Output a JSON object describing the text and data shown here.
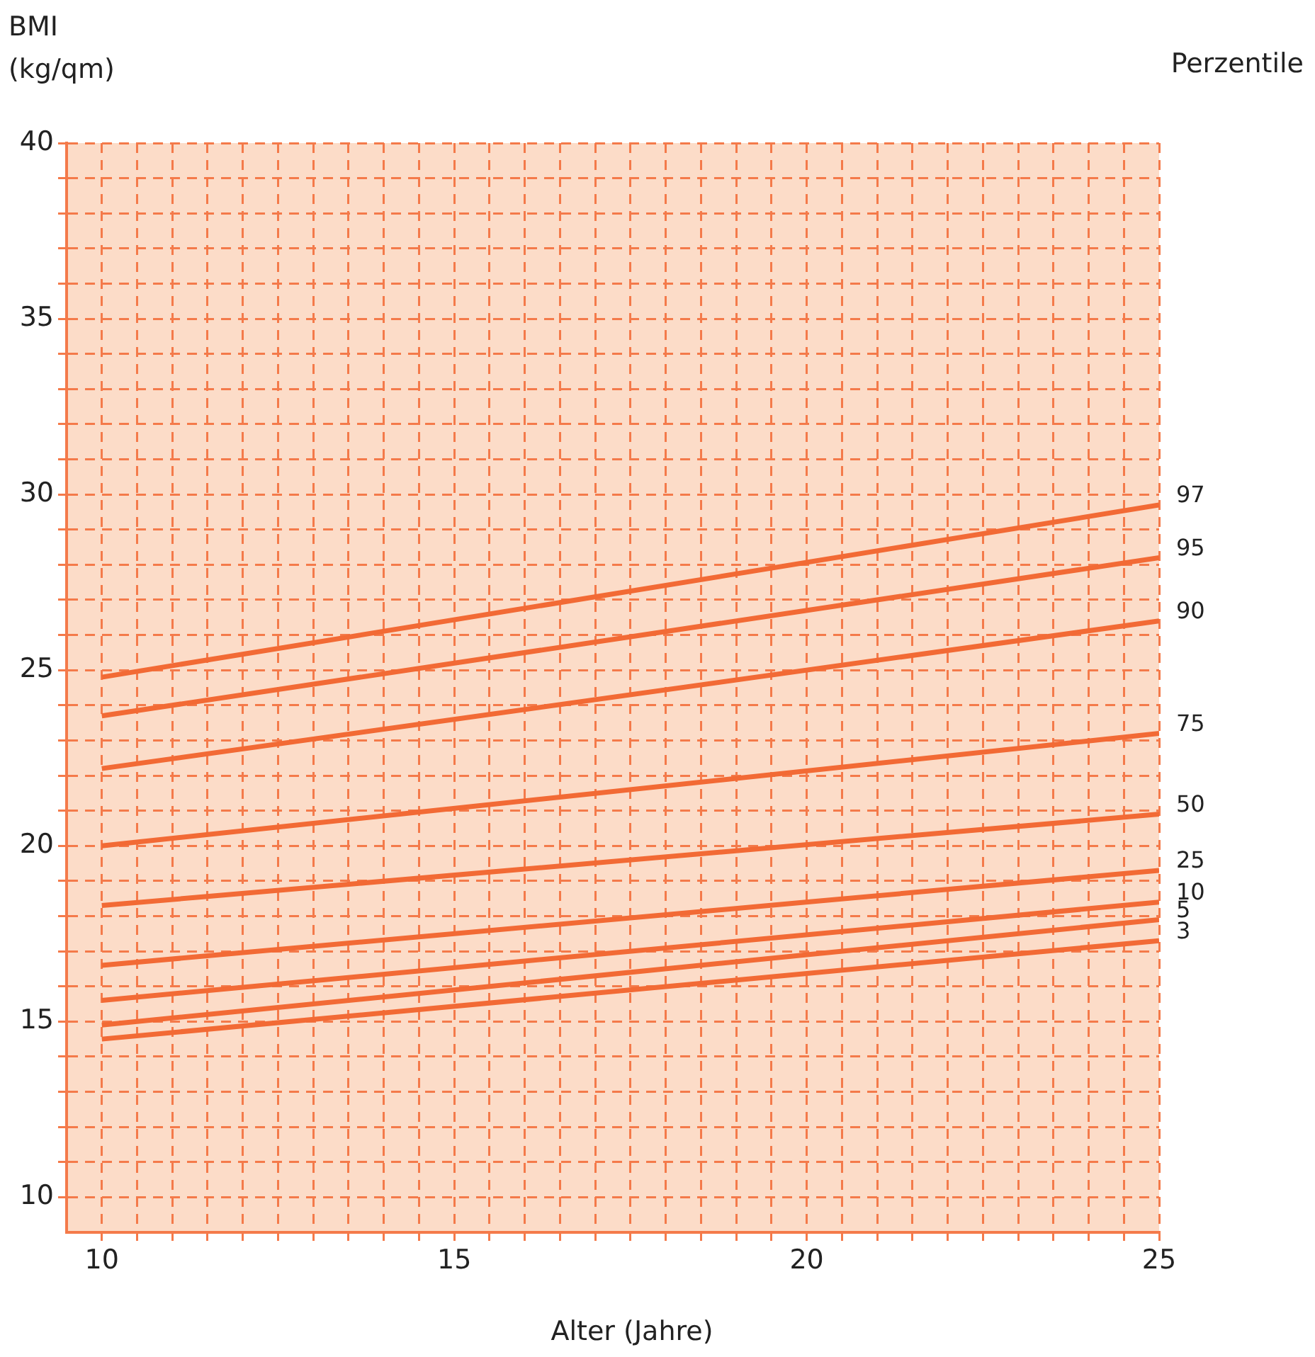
{
  "chart_data": {
    "type": "line",
    "ylabel": "BMI (kg/qm)",
    "xlabel": "Alter (Jahre)",
    "legend_title": "Perzentile",
    "x": [
      10,
      25
    ],
    "xlim": [
      9.5,
      25
    ],
    "ylim": [
      9,
      40
    ],
    "xticks": [
      10,
      {
        "value": 10.5,
        "label": null
      },
      {
        "value": 11,
        "label": null
      },
      {
        "value": 11.5,
        "label": null
      },
      {
        "value": 12,
        "label": null
      },
      {
        "value": 12.5,
        "label": null
      },
      {
        "value": 13,
        "label": null
      },
      {
        "value": 13.5,
        "label": null
      },
      {
        "value": 14,
        "label": null
      },
      {
        "value": 14.5,
        "label": null
      },
      15,
      {
        "value": 15.5,
        "label": null
      },
      {
        "value": 16,
        "label": null
      },
      {
        "value": 16.5,
        "label": null
      },
      {
        "value": 17,
        "label": null
      },
      {
        "value": 17.5,
        "label": null
      },
      {
        "value": 18,
        "label": null
      },
      {
        "value": 18.5,
        "label": null
      },
      {
        "value": 19,
        "label": null
      },
      {
        "value": 19.5,
        "label": null
      },
      20,
      {
        "value": 20.5,
        "label": null
      },
      {
        "value": 21,
        "label": null
      },
      {
        "value": 21.5,
        "label": null
      },
      {
        "value": 22,
        "label": null
      },
      {
        "value": 22.5,
        "label": null
      },
      {
        "value": 23,
        "label": null
      },
      {
        "value": 23.5,
        "label": null
      },
      {
        "value": 24,
        "label": null
      },
      {
        "value": 24.5,
        "label": null
      },
      25
    ],
    "yticks": [
      10,
      {
        "value": 11,
        "label": null
      },
      {
        "value": 12,
        "label": null
      },
      {
        "value": 13,
        "label": null
      },
      {
        "value": 14,
        "label": null
      },
      15,
      {
        "value": 16,
        "label": null
      },
      {
        "value": 17,
        "label": null
      },
      {
        "value": 18,
        "label": null
      },
      {
        "value": 19,
        "label": null
      },
      20,
      {
        "value": 21,
        "label": null
      },
      {
        "value": 22,
        "label": null
      },
      {
        "value": 23,
        "label": null
      },
      {
        "value": 24,
        "label": null
      },
      25,
      {
        "value": 26,
        "label": null
      },
      {
        "value": 27,
        "label": null
      },
      {
        "value": 28,
        "label": null
      },
      {
        "value": 29,
        "label": null
      },
      30,
      {
        "value": 31,
        "label": null
      },
      {
        "value": 32,
        "label": null
      },
      {
        "value": 33,
        "label": null
      },
      {
        "value": 34,
        "label": null
      },
      35,
      {
        "value": 36,
        "label": null
      },
      {
        "value": 37,
        "label": null
      },
      {
        "value": 38,
        "label": null
      },
      {
        "value": 39,
        "label": null
      },
      40
    ],
    "grid": true,
    "line_style": "solid",
    "marker": "none",
    "series": [
      {
        "name": "97",
        "color": "#f26a35",
        "values": [
          24.8,
          29.7
        ]
      },
      {
        "name": "95",
        "color": "#f26a35",
        "values": [
          23.7,
          28.2
        ]
      },
      {
        "name": "90",
        "color": "#f26a35",
        "values": [
          22.2,
          26.4
        ]
      },
      {
        "name": "75",
        "color": "#f26a35",
        "values": [
          20.0,
          23.2
        ]
      },
      {
        "name": "50",
        "color": "#f26a35",
        "values": [
          18.3,
          20.9
        ]
      },
      {
        "name": "25",
        "color": "#f26a35",
        "values": [
          16.6,
          19.3
        ]
      },
      {
        "name": "10",
        "color": "#f26a35",
        "values": [
          15.6,
          18.4
        ]
      },
      {
        "name": "5",
        "color": "#f26a35",
        "values": [
          14.9,
          17.9
        ]
      },
      {
        "name": "3",
        "color": "#f26a35",
        "values": [
          14.5,
          17.3
        ]
      }
    ]
  }
}
